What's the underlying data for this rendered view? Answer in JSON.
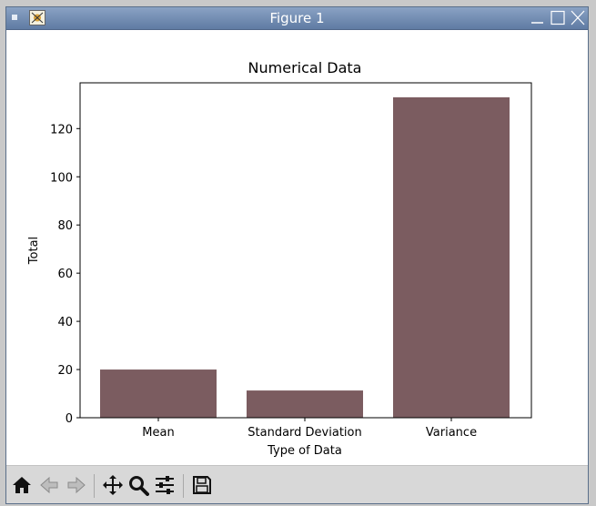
{
  "window": {
    "title": "Figure 1"
  },
  "toolbar": {
    "icons": [
      "home-icon",
      "back-arrow-icon",
      "forward-arrow-icon",
      "pan-icon",
      "zoom-icon",
      "configure-subplots-icon",
      "save-icon"
    ]
  },
  "colors": {
    "bar": "#7b5c60",
    "titlebar": "#6f8bb3"
  },
  "chart_data": {
    "type": "bar",
    "title": "Numerical Data",
    "xlabel": "Type of Data",
    "ylabel": "Total",
    "categories": [
      "Mean",
      "Standard Deviation",
      "Variance"
    ],
    "values": [
      20,
      11.3,
      133
    ],
    "ylim": [
      0,
      139
    ],
    "yticks": [
      0,
      20,
      40,
      60,
      80,
      100,
      120
    ],
    "grid": false,
    "legend": "none"
  }
}
